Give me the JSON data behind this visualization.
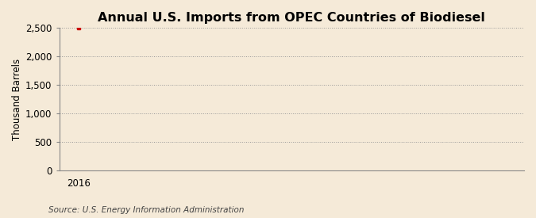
{
  "title": "Annual U.S. Imports from OPEC Countries of Biodiesel",
  "ylabel": "Thousand Barrels",
  "source": "Source: U.S. Energy Information Administration",
  "x_data": [
    2016
  ],
  "y_data": [
    2500
  ],
  "marker_color": "#cc0000",
  "background_color": "#f5ead8",
  "plot_bg_color": "#f5ead8",
  "ylim": [
    0,
    2500
  ],
  "xlim": [
    2015.4,
    2030
  ],
  "yticks": [
    0,
    500,
    1000,
    1500,
    2000,
    2500
  ],
  "ytick_labels": [
    "0",
    "500",
    "1,000",
    "1,500",
    "2,000",
    "2,500"
  ],
  "xticks": [
    2016
  ],
  "xtick_labels": [
    "2016"
  ],
  "grid_color": "#999999",
  "grid_style": ":",
  "grid_linewidth": 0.7,
  "spine_color": "#888888",
  "title_fontsize": 11.5,
  "label_fontsize": 8.5,
  "tick_fontsize": 8.5,
  "source_fontsize": 7.5
}
